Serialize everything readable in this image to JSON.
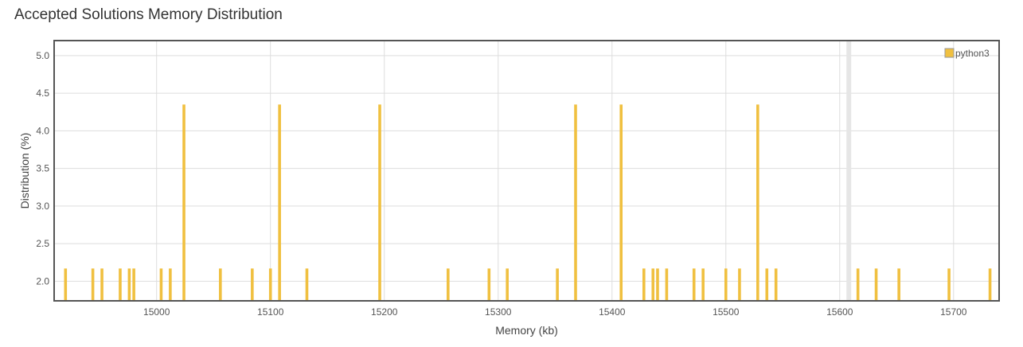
{
  "page": {
    "title": "Accepted Solutions Memory Distribution"
  },
  "chart_data": {
    "type": "bar",
    "title": "Accepted Solutions Memory Distribution",
    "xlabel": "Memory (kb)",
    "ylabel": "Distribution (%)",
    "xlim": [
      14910,
      15740
    ],
    "ylim": [
      1.74,
      5.2
    ],
    "xticks": [
      15000,
      15100,
      15200,
      15300,
      15400,
      15500,
      15600,
      15700
    ],
    "yticks": [
      2.0,
      2.5,
      3.0,
      3.5,
      4.0,
      4.5,
      5.0
    ],
    "grid": true,
    "legend_position": "top-right",
    "bar_color": "#f0c040",
    "highlight_band": {
      "x": 15608,
      "color": "#e6e6e6"
    },
    "series": [
      {
        "name": "python3",
        "color": "#f0c040",
        "x": [
          14920,
          14944,
          14952,
          14968,
          14976,
          14980,
          15004,
          15012,
          15024,
          15056,
          15084,
          15100,
          15108,
          15132,
          15196,
          15256,
          15292,
          15308,
          15352,
          15368,
          15408,
          15428,
          15436,
          15440,
          15448,
          15472,
          15480,
          15500,
          15512,
          15528,
          15536,
          15544,
          15616,
          15632,
          15652,
          15696,
          15732
        ],
        "values": [
          2.17,
          2.17,
          2.17,
          2.17,
          2.17,
          2.17,
          2.17,
          2.17,
          4.35,
          2.17,
          2.17,
          2.17,
          4.35,
          2.17,
          4.35,
          2.17,
          2.17,
          2.17,
          2.17,
          4.35,
          4.35,
          2.17,
          2.17,
          2.17,
          2.17,
          2.17,
          2.17,
          2.17,
          2.17,
          4.35,
          2.17,
          2.17,
          2.17,
          2.17,
          2.17,
          2.17,
          2.17
        ]
      }
    ]
  }
}
